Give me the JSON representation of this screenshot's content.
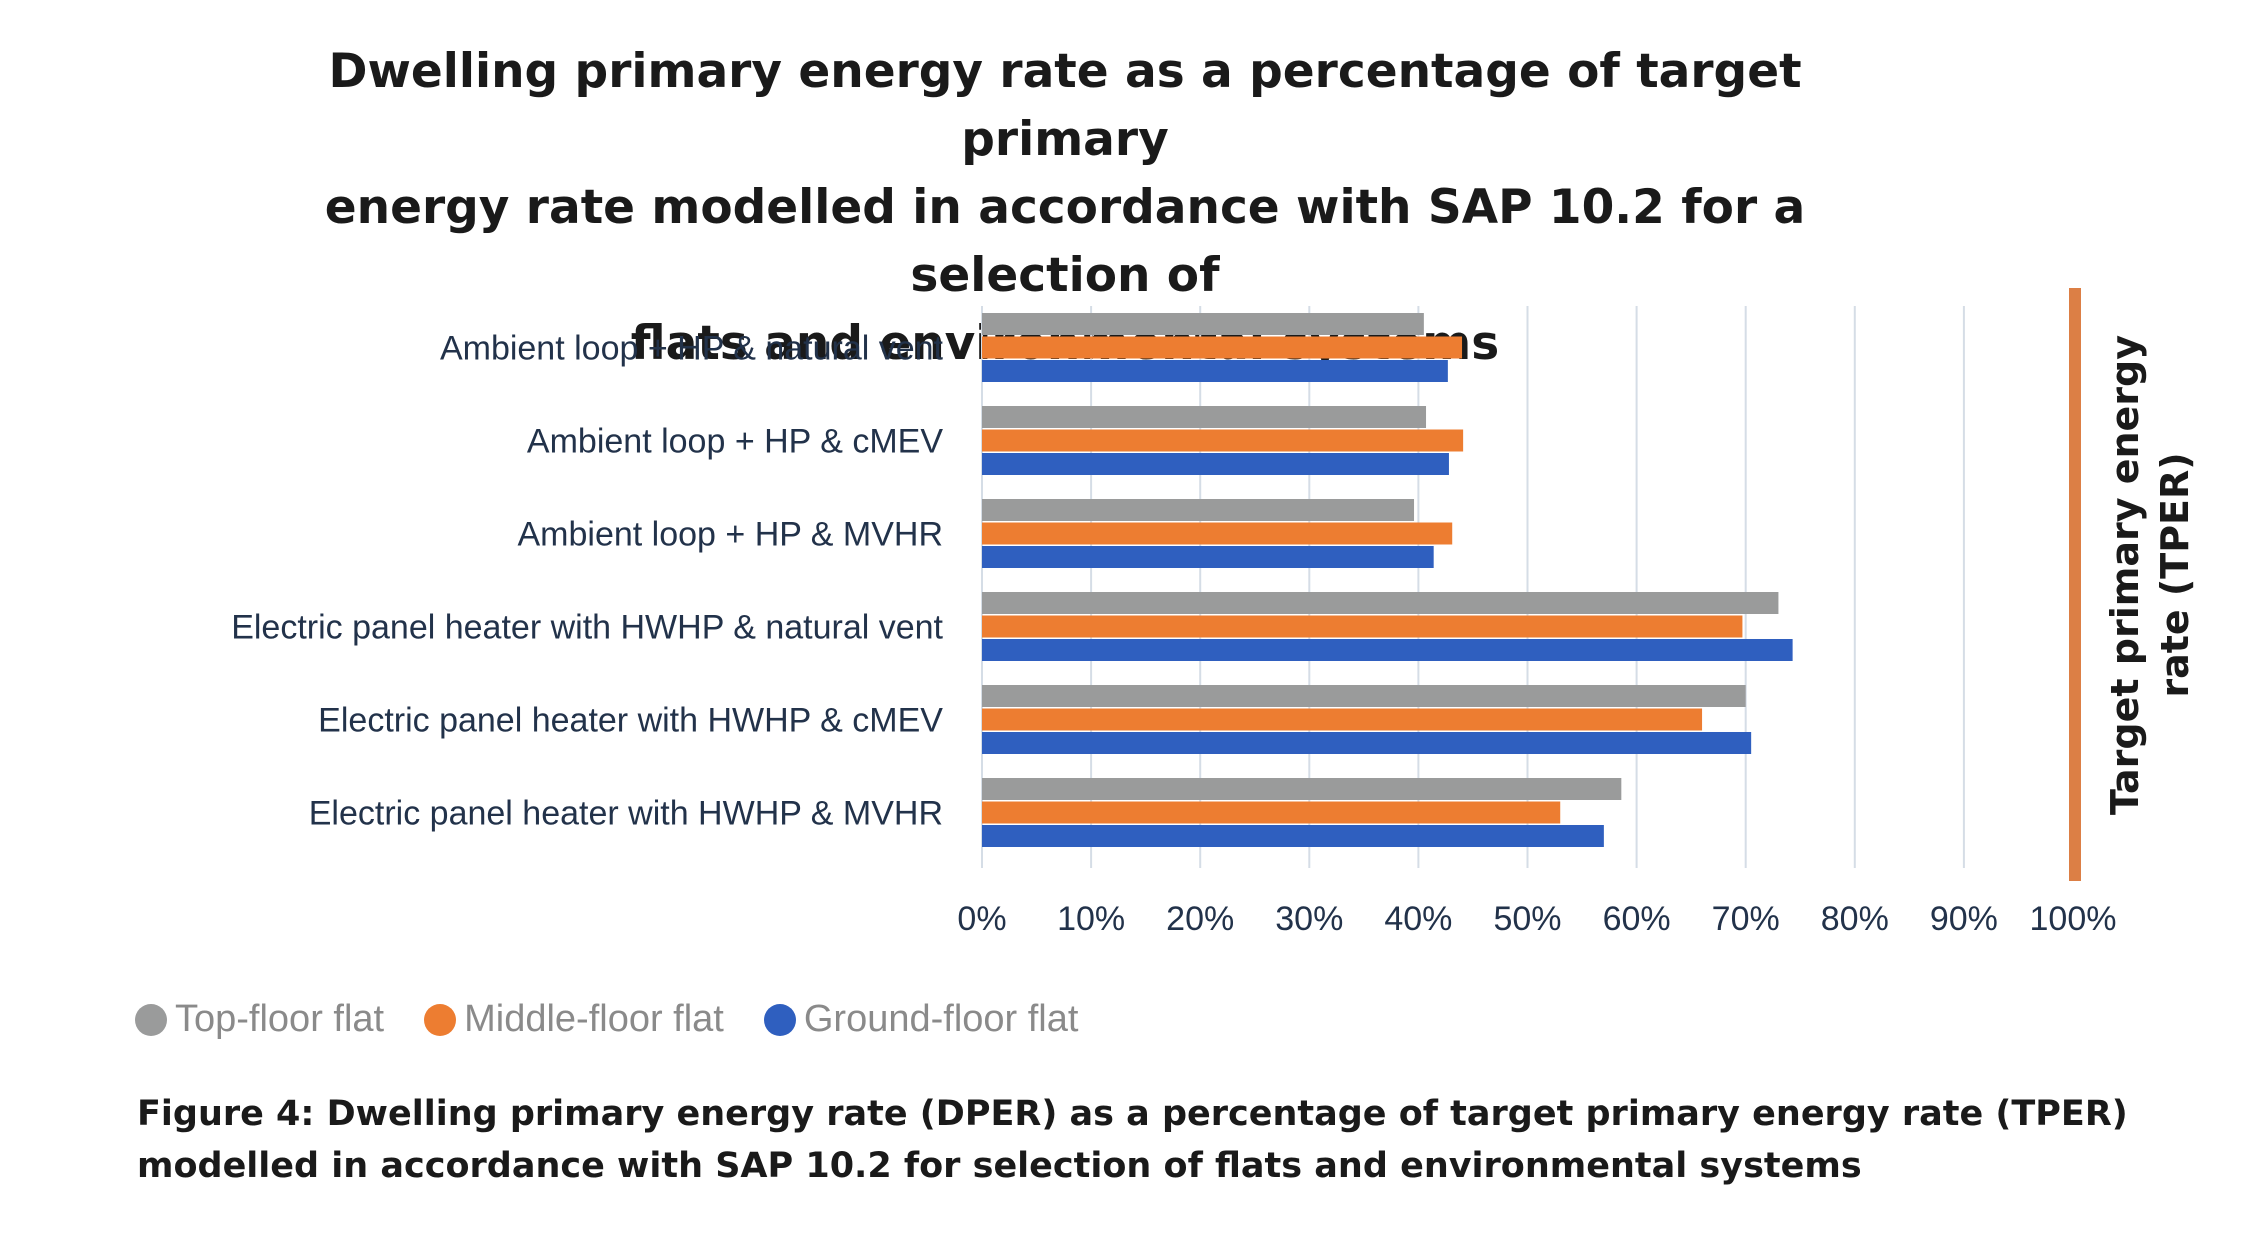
{
  "title": {
    "line1": "Dwelling primary energy rate as a percentage of target primary",
    "line2": "energy rate modelled in accordance with SAP 10.2 for a selection of",
    "line3": "flats and environmental systems"
  },
  "chart_data": {
    "type": "bar",
    "orientation": "horizontal",
    "title": "Dwelling primary energy rate as a percentage of target primary energy rate modelled in accordance with SAP 10.2 for a selection of flats and environmental systems",
    "categories": [
      "Ambient loop + HP & natural vent",
      "Ambient loop + HP & cMEV",
      "Ambient loop + HP & MVHR",
      "Electric panel heater with HWHP & natural vent",
      "Electric panel heater with HWHP & cMEV",
      "Electric panel heater with HWHP & MVHR"
    ],
    "series": [
      {
        "name": "Top-floor flat",
        "color": "#9a9b9b",
        "values": [
          40.5,
          40.7,
          39.6,
          73.0,
          70.0,
          58.6
        ]
      },
      {
        "name": "Middle-floor flat",
        "color": "#ed7d31",
        "values": [
          44.0,
          44.1,
          43.1,
          69.7,
          66.0,
          53.0
        ]
      },
      {
        "name": "Ground-floor flat",
        "color": "#2f5fbf",
        "values": [
          42.7,
          42.8,
          41.4,
          74.3,
          70.5,
          57.0
        ]
      }
    ],
    "xlim": [
      0,
      100
    ],
    "xticks": [
      "0%",
      "10%",
      "20%",
      "30%",
      "40%",
      "50%",
      "60%",
      "70%",
      "80%",
      "90%",
      "100%"
    ],
    "grid": "vertical",
    "legend_position": "bottom-left",
    "reference_line": {
      "value": 100,
      "label_line1": "Target primary energy",
      "label_line2": "rate (TPER)",
      "color": "#dc7f45"
    }
  },
  "legend": {
    "items": [
      {
        "label": "Top-floor flat",
        "color": "#9a9b9b"
      },
      {
        "label": "Middle-floor flat",
        "color": "#ed7d31"
      },
      {
        "label": "Ground-floor flat",
        "color": "#2f5fbf"
      }
    ]
  },
  "caption": {
    "line1": "Figure 4: Dwelling primary energy rate (DPER) as a percentage of target primary energy rate (TPER)",
    "line2": "modelled in accordance with SAP 10.2 for selection of flats and environmental systems"
  }
}
